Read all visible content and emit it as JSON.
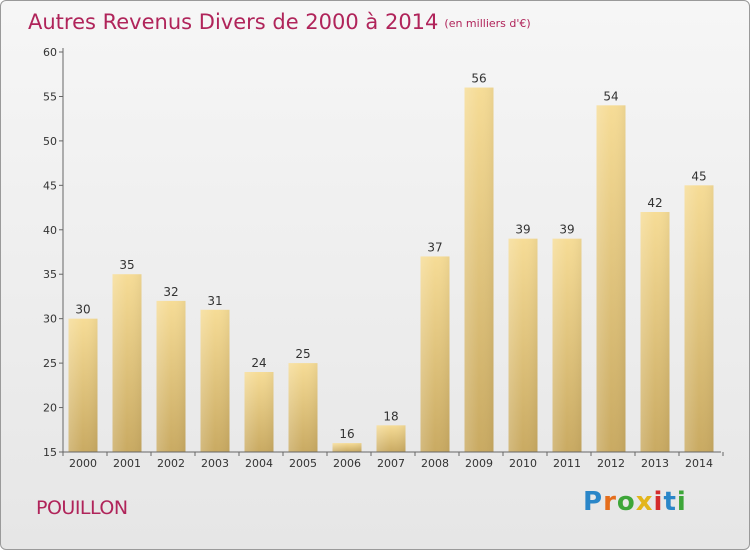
{
  "header": {
    "title": "Autres Revenus Divers de 2000 à 2014",
    "subtitle": "(en milliers d'€)"
  },
  "footer": {
    "city": "POUILLON",
    "logo": "Proxiti"
  },
  "colors": {
    "title": "#b0245a",
    "bar_top": "#f6dc96",
    "bar_bottom": "#c9aa62",
    "axis": "#666666"
  },
  "chart_data": {
    "type": "bar",
    "title": "Autres Revenus Divers de 2000 à 2014",
    "subtitle": "(en milliers d'€)",
    "xlabel": "",
    "ylabel": "",
    "ylim": [
      15,
      60
    ],
    "yticks": [
      15,
      20,
      25,
      30,
      35,
      40,
      45,
      50,
      55,
      60
    ],
    "grid": false,
    "categories": [
      "2000",
      "2001",
      "2002",
      "2003",
      "2004",
      "2005",
      "2006",
      "2007",
      "2008",
      "2009",
      "2010",
      "2011",
      "2012",
      "2013",
      "2014"
    ],
    "values": [
      30,
      35,
      32,
      31,
      24,
      25,
      16,
      18,
      37,
      56,
      39,
      39,
      54,
      42,
      45
    ]
  }
}
